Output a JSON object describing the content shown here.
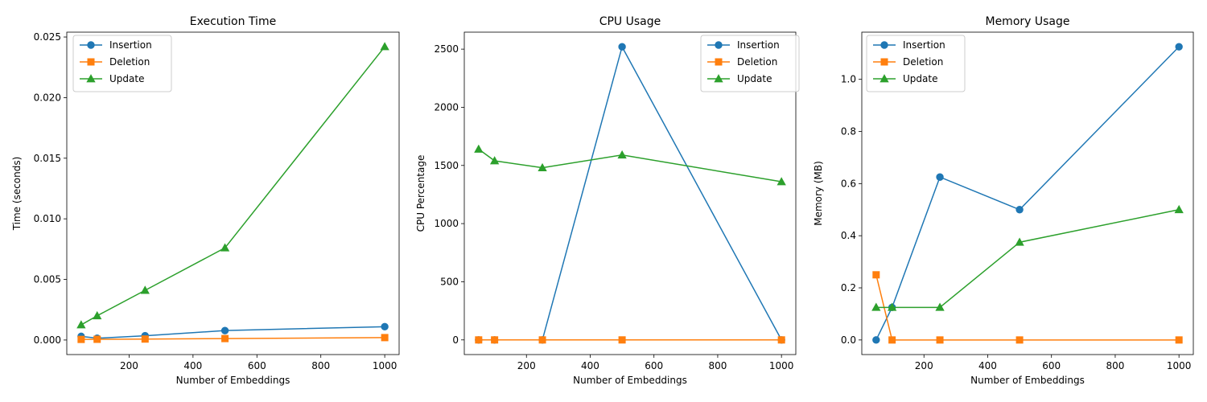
{
  "colors": {
    "insertion": "#1f77b4",
    "deletion": "#ff7f0e",
    "update": "#2ca02c"
  },
  "chart_data": [
    {
      "type": "line",
      "title": "Execution Time",
      "xlabel": "Number of Embeddings",
      "ylabel": "Time (seconds)",
      "xlim": [
        5,
        1045
      ],
      "ylim": [
        -0.0012,
        0.0254
      ],
      "xticks": [
        200,
        400,
        600,
        800,
        1000
      ],
      "xtick_labels": [
        "200",
        "400",
        "600",
        "800",
        "1000"
      ],
      "yticks": [
        0,
        0.005,
        0.01,
        0.015,
        0.02,
        0.025
      ],
      "ytick_labels": [
        "0.000",
        "0.005",
        "0.010",
        "0.015",
        "0.020",
        "0.025"
      ],
      "legend_position": "upper-left",
      "grid": false,
      "x": [
        50,
        100,
        250,
        500,
        1000
      ],
      "series": [
        {
          "name": "Insertion",
          "marker": "circle",
          "values": [
            0.0003,
            0.00015,
            0.00035,
            0.00078,
            0.0011
          ]
        },
        {
          "name": "Deletion",
          "marker": "square",
          "values": [
            5e-05,
            6e-05,
            8e-05,
            0.00012,
            0.0002
          ]
        },
        {
          "name": "Update",
          "marker": "triangle",
          "values": [
            0.00125,
            0.002,
            0.0041,
            0.0076,
            0.0242
          ]
        }
      ]
    },
    {
      "type": "line",
      "title": "CPU Usage",
      "xlabel": "Number of Embeddings",
      "ylabel": "CPU Percentage",
      "xlim": [
        5,
        1045
      ],
      "ylim": [
        -126,
        2646
      ],
      "xticks": [
        200,
        400,
        600,
        800,
        1000
      ],
      "xtick_labels": [
        "200",
        "400",
        "600",
        "800",
        "1000"
      ],
      "yticks": [
        0,
        500,
        1000,
        1500,
        2000,
        2500
      ],
      "ytick_labels": [
        "0",
        "500",
        "1000",
        "1500",
        "2000",
        "2500"
      ],
      "legend_position": "upper-right",
      "grid": false,
      "x": [
        50,
        100,
        250,
        500,
        1000
      ],
      "series": [
        {
          "name": "Insertion",
          "marker": "circle",
          "values": [
            0,
            0,
            0,
            2520,
            0
          ]
        },
        {
          "name": "Deletion",
          "marker": "square",
          "values": [
            0,
            0,
            0,
            0,
            0
          ]
        },
        {
          "name": "Update",
          "marker": "triangle",
          "values": [
            1640,
            1540,
            1480,
            1590,
            1360
          ]
        }
      ]
    },
    {
      "type": "line",
      "title": "Memory Usage",
      "xlabel": "Number of Embeddings",
      "ylabel": "Memory (MB)",
      "xlim": [
        5,
        1045
      ],
      "ylim": [
        -0.056,
        1.181
      ],
      "xticks": [
        200,
        400,
        600,
        800,
        1000
      ],
      "xtick_labels": [
        "200",
        "400",
        "600",
        "800",
        "1000"
      ],
      "yticks": [
        0,
        0.2,
        0.4,
        0.6,
        0.8,
        1.0
      ],
      "ytick_labels": [
        "0.0",
        "0.2",
        "0.4",
        "0.6",
        "0.8",
        "1.0"
      ],
      "legend_position": "upper-left",
      "grid": false,
      "x": [
        50,
        100,
        250,
        500,
        1000
      ],
      "series": [
        {
          "name": "Insertion",
          "marker": "circle",
          "values": [
            0,
            0.125,
            0.625,
            0.5,
            1.125
          ]
        },
        {
          "name": "Deletion",
          "marker": "square",
          "values": [
            0.25,
            0,
            0,
            0,
            0
          ]
        },
        {
          "name": "Update",
          "marker": "triangle",
          "values": [
            0.125,
            0.125,
            0.125,
            0.375,
            0.5
          ]
        }
      ]
    }
  ]
}
